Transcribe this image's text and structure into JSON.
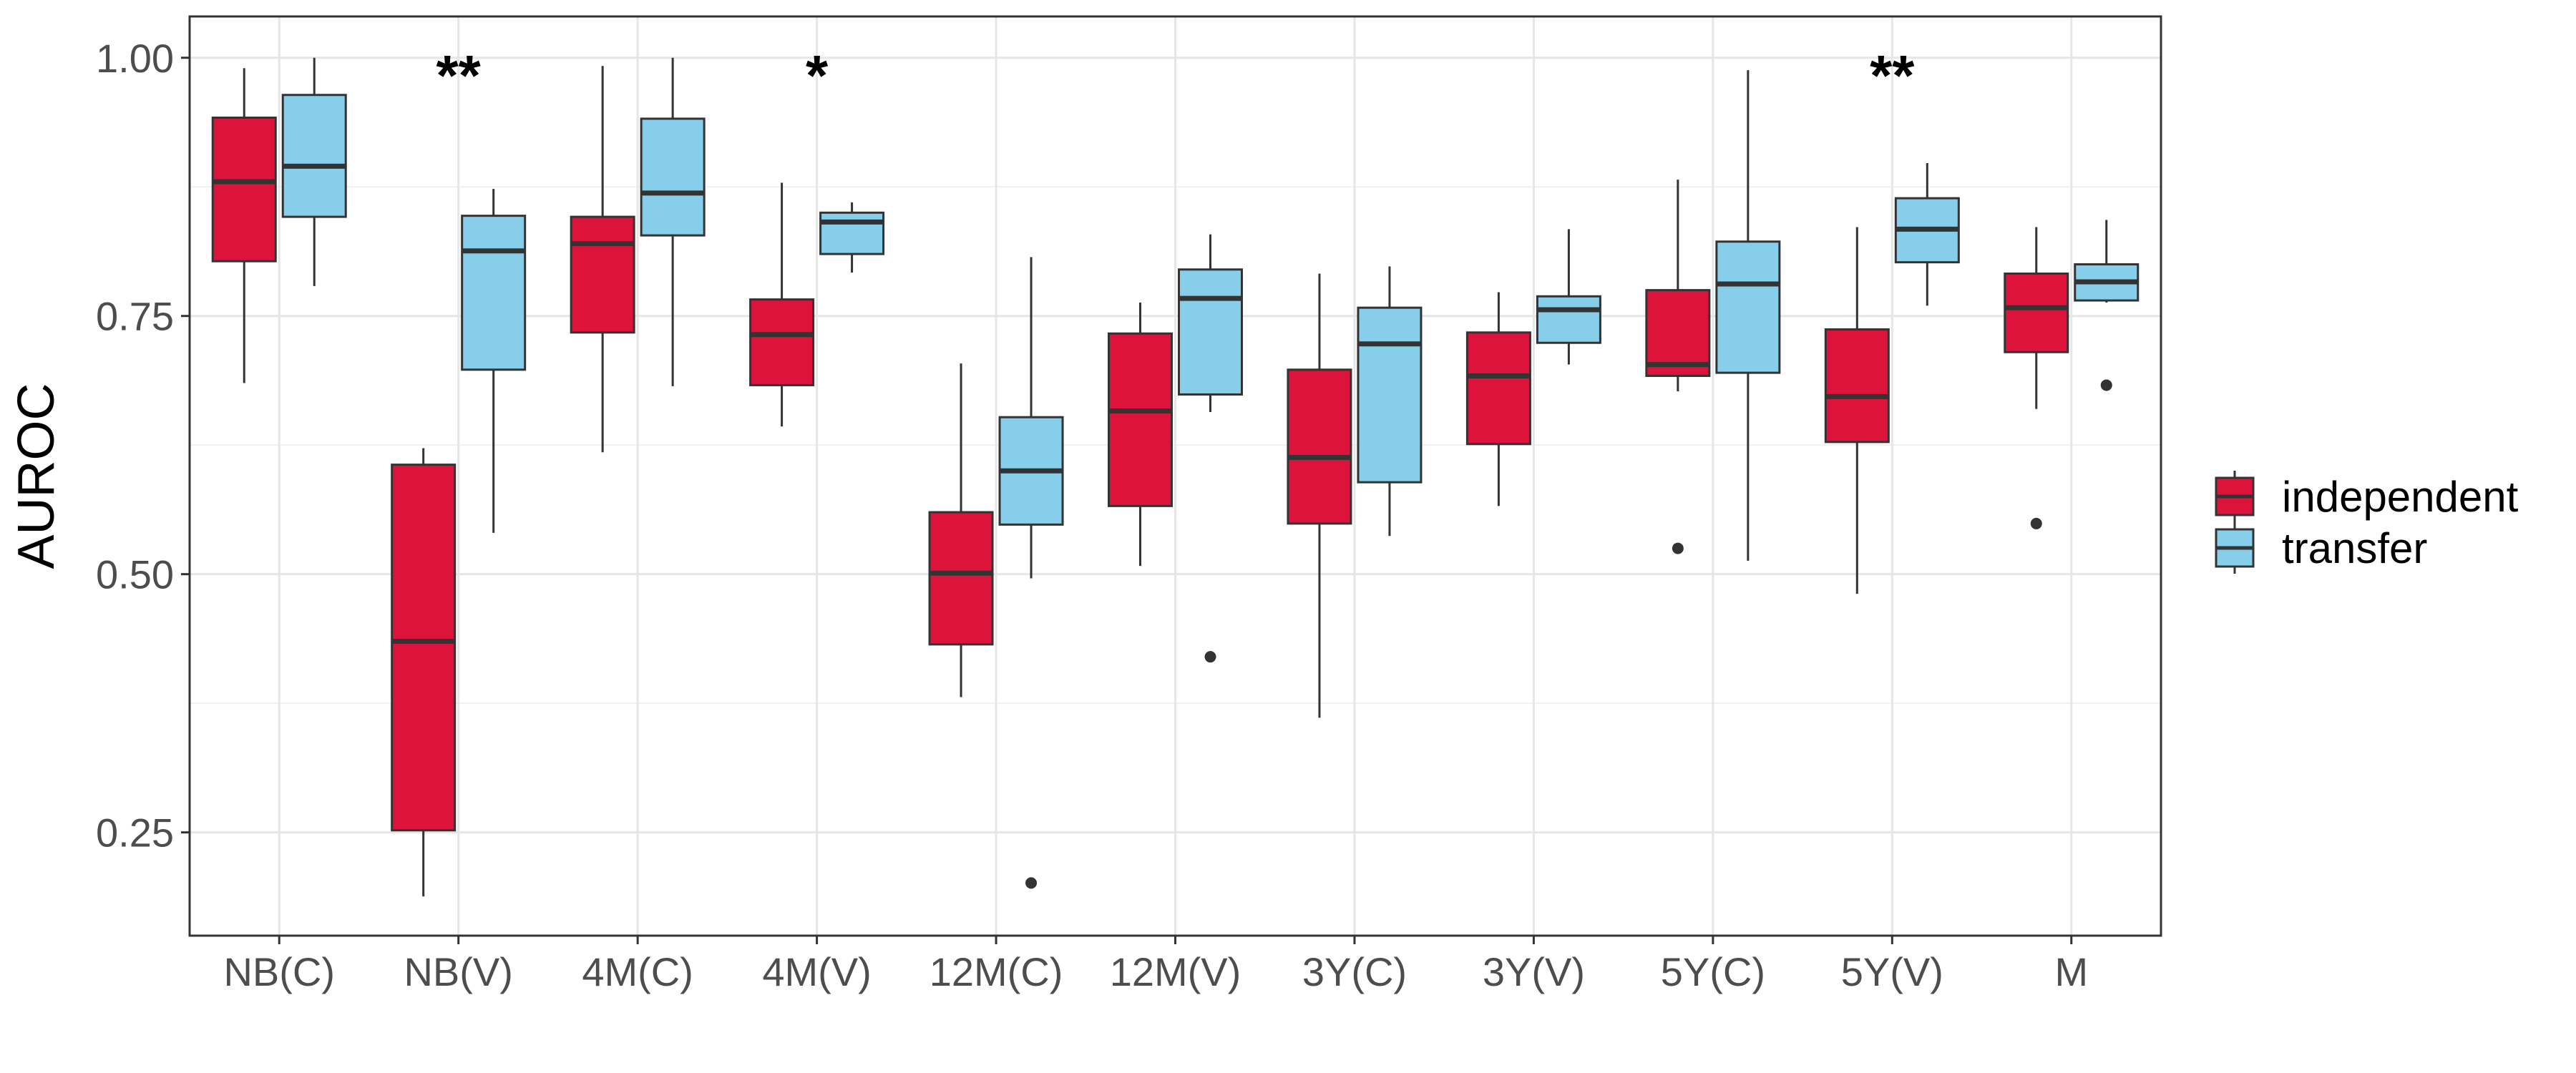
{
  "chart_data": {
    "type": "box",
    "title": "",
    "xlabel": "",
    "ylabel": "AUROC",
    "ylim": [
      0.15,
      1.04
    ],
    "yticks": [
      0.25,
      0.5,
      0.75,
      1.0
    ],
    "ytick_labels": [
      "0.25",
      "0.50",
      "0.75",
      "1.00"
    ],
    "grid": true,
    "legend_position": "right",
    "categories": [
      "NB(C)",
      "NB(V)",
      "4M(C)",
      "4M(V)",
      "12M(C)",
      "12M(V)",
      "3Y(C)",
      "3Y(V)",
      "5Y(C)",
      "5Y(V)",
      "M"
    ],
    "series": [
      {
        "name": "independent",
        "color": "#DC143C",
        "boxes": [
          {
            "min": 0.685,
            "q1": 0.803,
            "median": 0.88,
            "q3": 0.942,
            "max": 0.99,
            "outliers": []
          },
          {
            "min": 0.188,
            "q1": 0.252,
            "median": 0.435,
            "q3": 0.606,
            "max": 0.622,
            "outliers": []
          },
          {
            "min": 0.618,
            "q1": 0.734,
            "median": 0.82,
            "q3": 0.846,
            "max": 0.992,
            "outliers": []
          },
          {
            "min": 0.643,
            "q1": 0.683,
            "median": 0.732,
            "q3": 0.766,
            "max": 0.879,
            "outliers": []
          },
          {
            "min": 0.381,
            "q1": 0.432,
            "median": 0.501,
            "q3": 0.56,
            "max": 0.704,
            "outliers": []
          },
          {
            "min": 0.508,
            "q1": 0.566,
            "median": 0.658,
            "q3": 0.733,
            "max": 0.763,
            "outliers": []
          },
          {
            "min": 0.361,
            "q1": 0.549,
            "median": 0.613,
            "q3": 0.698,
            "max": 0.791,
            "outliers": []
          },
          {
            "min": 0.566,
            "q1": 0.626,
            "median": 0.692,
            "q3": 0.734,
            "max": 0.773,
            "outliers": []
          },
          {
            "min": 0.677,
            "q1": 0.692,
            "median": 0.703,
            "q3": 0.775,
            "max": 0.882,
            "outliers": [
              0.525
            ]
          },
          {
            "min": 0.481,
            "q1": 0.628,
            "median": 0.672,
            "q3": 0.737,
            "max": 0.836,
            "outliers": []
          },
          {
            "min": 0.66,
            "q1": 0.715,
            "median": 0.758,
            "q3": 0.791,
            "max": 0.836,
            "outliers": [
              0.549
            ]
          }
        ]
      },
      {
        "name": "transfer",
        "color": "#87CEEB",
        "boxes": [
          {
            "min": 0.779,
            "q1": 0.846,
            "median": 0.895,
            "q3": 0.964,
            "max": 1.0,
            "outliers": []
          },
          {
            "min": 0.54,
            "q1": 0.698,
            "median": 0.813,
            "q3": 0.847,
            "max": 0.873,
            "outliers": []
          },
          {
            "min": 0.682,
            "q1": 0.828,
            "median": 0.869,
            "q3": 0.941,
            "max": 1.0,
            "outliers": []
          },
          {
            "min": 0.792,
            "q1": 0.81,
            "median": 0.841,
            "q3": 0.85,
            "max": 0.86,
            "outliers": []
          },
          {
            "min": 0.496,
            "q1": 0.548,
            "median": 0.6,
            "q3": 0.652,
            "max": 0.807,
            "outliers": [
              0.201
            ]
          },
          {
            "min": 0.657,
            "q1": 0.674,
            "median": 0.767,
            "q3": 0.795,
            "max": 0.829,
            "outliers": [
              0.42
            ]
          },
          {
            "min": 0.537,
            "q1": 0.589,
            "median": 0.723,
            "q3": 0.758,
            "max": 0.798,
            "outliers": []
          },
          {
            "min": 0.703,
            "q1": 0.724,
            "median": 0.756,
            "q3": 0.769,
            "max": 0.834,
            "outliers": []
          },
          {
            "min": 0.513,
            "q1": 0.695,
            "median": 0.781,
            "q3": 0.822,
            "max": 0.988,
            "outliers": []
          },
          {
            "min": 0.76,
            "q1": 0.802,
            "median": 0.834,
            "q3": 0.864,
            "max": 0.898,
            "outliers": []
          },
          {
            "min": 0.763,
            "q1": 0.765,
            "median": 0.783,
            "q3": 0.8,
            "max": 0.843,
            "outliers": [
              0.683
            ]
          }
        ]
      }
    ],
    "annotations": [
      {
        "category": "NB(V)",
        "text": "**",
        "y": 1.0
      },
      {
        "category": "4M(V)",
        "text": "*",
        "y": 1.0
      },
      {
        "category": "5Y(V)",
        "text": "**",
        "y": 1.0
      }
    ]
  }
}
